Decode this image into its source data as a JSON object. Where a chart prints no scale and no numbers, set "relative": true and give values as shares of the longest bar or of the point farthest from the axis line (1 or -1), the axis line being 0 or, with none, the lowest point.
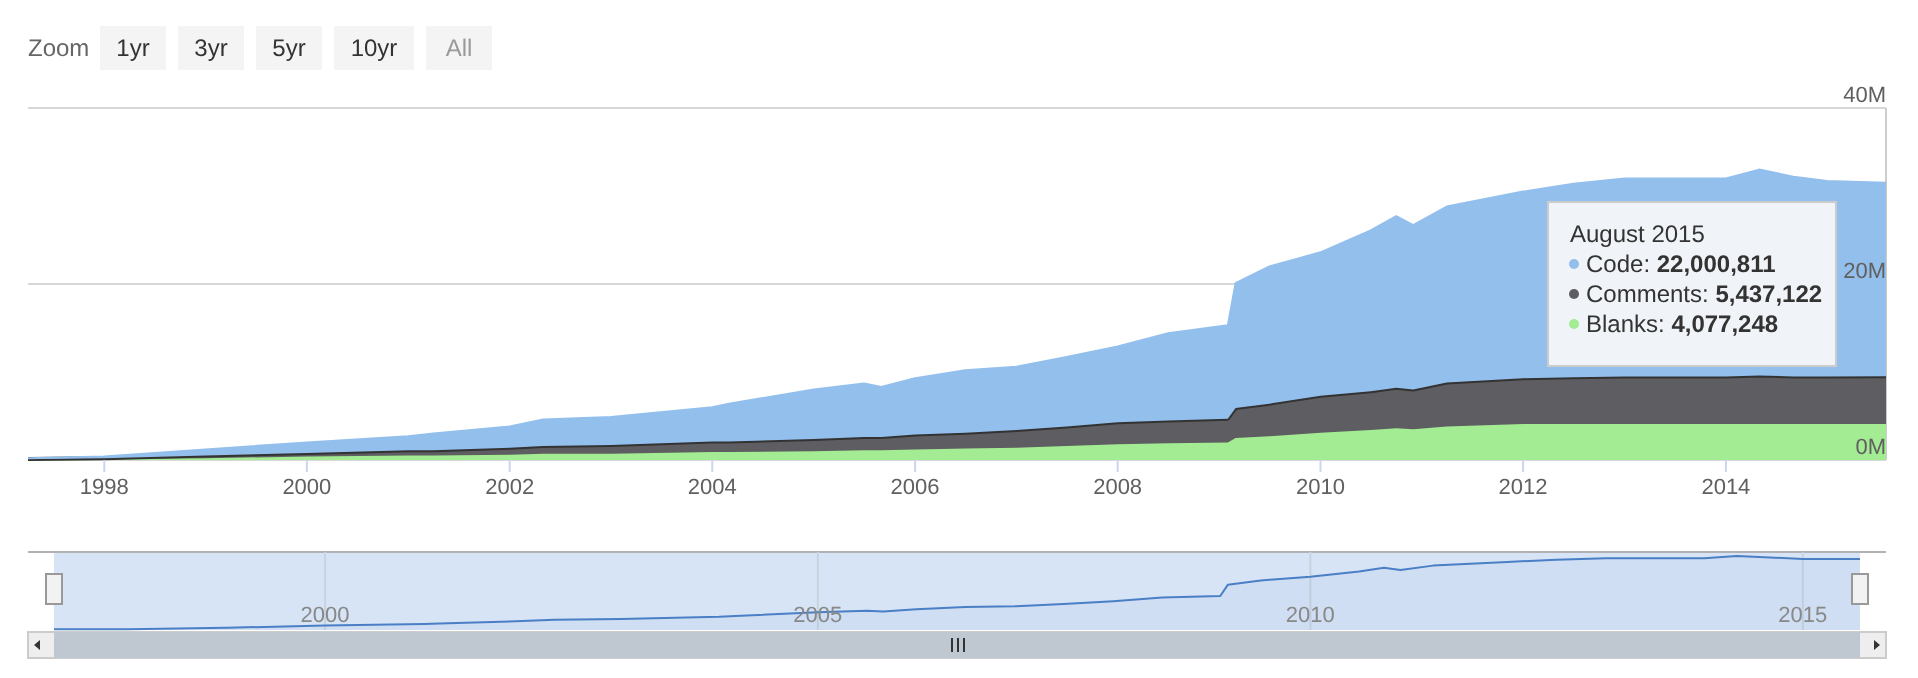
{
  "chart_data": [
    {
      "type": "area",
      "stacked": true,
      "annotations": [
        "Zoom",
        "1yr",
        "3yr",
        "5yr",
        "10yr",
        "All",
        "August 2015",
        "Code: 22,000,811",
        "Comments: 5,437,122",
        "Blanks: 4,077,248"
      ],
      "x": [
        "1997-04",
        "1998-01",
        "1999-01",
        "2000-01",
        "2001-01",
        "2001-04",
        "2002-01",
        "2002-05",
        "2003-01",
        "2004-01",
        "2004-03",
        "2005-01",
        "2005-07",
        "2005-09",
        "2006-01",
        "2006-07",
        "2007-01",
        "2007-07",
        "2008-01",
        "2008-07",
        "2009-02",
        "2009-03",
        "2009-07",
        "2010-01",
        "2010-07",
        "2010-10",
        "2010-12",
        "2011-04",
        "2012-01",
        "2012-07",
        "2013-01",
        "2014-01",
        "2014-05",
        "2014-09",
        "2015-01",
        "2015-08"
      ],
      "xlim": [
        "1997-04",
        "2015-08"
      ],
      "xticks": [
        {
          "value": "1998",
          "label": "1998"
        },
        {
          "value": "2000",
          "label": "2000"
        },
        {
          "value": "2002",
          "label": "2002"
        },
        {
          "value": "2004",
          "label": "2004"
        },
        {
          "value": "2006",
          "label": "2006"
        },
        {
          "value": "2008",
          "label": "2008"
        },
        {
          "value": "2010",
          "label": "2010"
        },
        {
          "value": "2012",
          "label": "2012"
        },
        {
          "value": "2014",
          "label": "2014"
        }
      ],
      "ylim": [
        0,
        40000000
      ],
      "yticks": [
        {
          "value": 0,
          "label": "0M"
        },
        {
          "value": 20000000,
          "label": "20M"
        },
        {
          "value": 40000000,
          "label": "40M"
        }
      ],
      "grid": "y",
      "series": [
        {
          "color": "#a3ec93",
          "values": [
            0,
            100000,
            200000,
            400000,
            500000,
            500000,
            600000,
            700000,
            700000,
            900000,
            900000,
            1000000,
            1100000,
            1100000,
            1200000,
            1300000,
            1400000,
            1600000,
            1800000,
            1900000,
            2000000,
            2500000,
            2700000,
            3100000,
            3400000,
            3600000,
            3500000,
            3800000,
            4100000,
            4100000,
            4100000,
            4100000,
            4100000,
            4100000,
            4100000,
            4077248
          ]
        },
        {
          "color": "#5e5d61",
          "values": [
            100000,
            100000,
            300000,
            400000,
            600000,
            600000,
            800000,
            900000,
            1000000,
            1200000,
            1200000,
            1400000,
            1500000,
            1500000,
            1700000,
            1800000,
            2000000,
            2200000,
            2500000,
            2600000,
            2700000,
            3400000,
            3700000,
            4200000,
            4400000,
            4600000,
            4500000,
            5000000,
            5200000,
            5300000,
            5400000,
            5400000,
            5500000,
            5400000,
            5400000,
            5437122
          ]
        },
        {
          "color": "#93bfed",
          "values": [
            100000,
            200000,
            700000,
            1200000,
            1600000,
            1900000,
            2400000,
            3000000,
            3200000,
            3900000,
            4300000,
            5600000,
            6100000,
            5700000,
            6400000,
            7100000,
            7200000,
            7900000,
            8600000,
            9900000,
            10600000,
            14200000,
            15600000,
            16300000,
            18300000,
            19500000,
            18700000,
            20000000,
            21200000,
            22000000,
            22500000,
            22500000,
            23400000,
            22700000,
            22200000,
            22000811
          ]
        }
      ]
    },
    {
      "type": "area",
      "relative": true,
      "tick_labels": "x",
      "grid": "x",
      "color": "#4a7fc6",
      "x": [
        "1997-04",
        "1998-01",
        "1999-01",
        "2000-01",
        "2001-01",
        "2001-04",
        "2002-01",
        "2002-05",
        "2003-01",
        "2004-01",
        "2004-03",
        "2005-01",
        "2005-07",
        "2005-09",
        "2006-01",
        "2006-07",
        "2007-01",
        "2007-07",
        "2008-01",
        "2008-07",
        "2009-02",
        "2009-03",
        "2009-07",
        "2010-01",
        "2010-07",
        "2010-10",
        "2010-12",
        "2011-04",
        "2012-01",
        "2012-07",
        "2013-01",
        "2014-01",
        "2014-05",
        "2014-09",
        "2015-01",
        "2015-08"
      ],
      "xlim": [
        "1997-04",
        "2015-08"
      ],
      "xticks": [
        {
          "value": "2000",
          "label": "2000"
        },
        {
          "value": "2005",
          "label": "2005"
        },
        {
          "value": "2010",
          "label": "2010"
        },
        {
          "value": "2015",
          "label": "2015"
        }
      ],
      "values": [
        0.01,
        0.01,
        0.03,
        0.06,
        0.08,
        0.09,
        0.12,
        0.14,
        0.15,
        0.18,
        0.19,
        0.24,
        0.26,
        0.25,
        0.28,
        0.31,
        0.32,
        0.35,
        0.39,
        0.44,
        0.46,
        0.61,
        0.67,
        0.72,
        0.79,
        0.84,
        0.81,
        0.87,
        0.92,
        0.95,
        0.97,
        0.97,
        1,
        0.98,
        0.96,
        0.96
      ]
    }
  ]
}
